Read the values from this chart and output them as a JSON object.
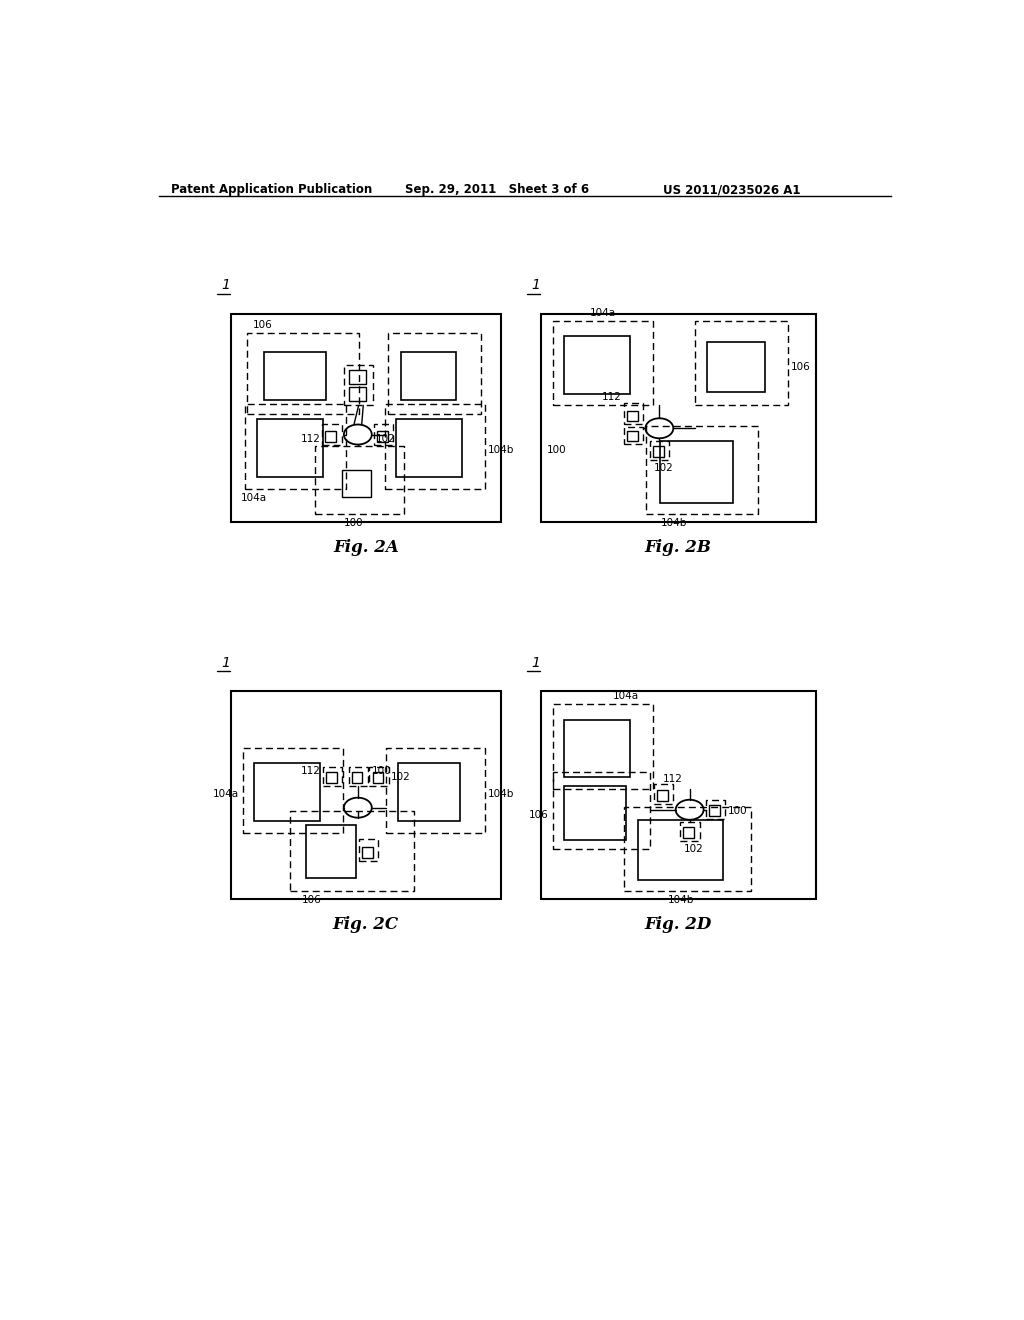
{
  "bg_color": "#ffffff",
  "header_left": "Patent Application Publication",
  "header_mid": "Sep. 29, 2011   Sheet 3 of 6",
  "header_right": "US 2011/0235026 A1"
}
